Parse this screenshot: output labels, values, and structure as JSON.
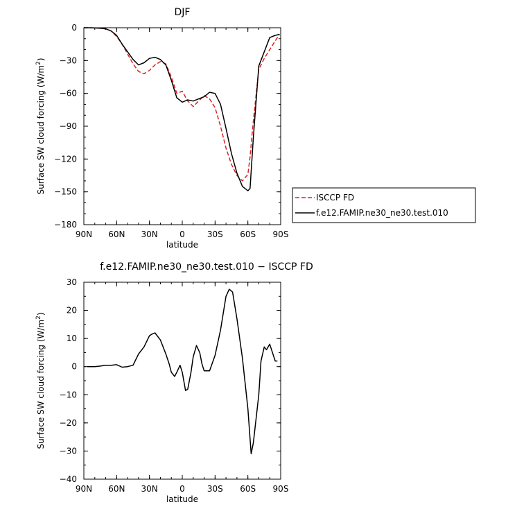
{
  "chart_data": [
    {
      "type": "line",
      "title": "DJF",
      "xlabel": "latitude",
      "ylabel": "Surface SW cloud forcing (W/m²)",
      "x_tick_labels": [
        "90N",
        "60N",
        "30N",
        "0",
        "30S",
        "60S",
        "90S"
      ],
      "x_ticks": [
        90,
        60,
        30,
        0,
        -30,
        -60,
        -90
      ],
      "xlim": [
        90,
        -90
      ],
      "y_ticks": [
        0,
        -30,
        -60,
        -90,
        -120,
        -150,
        -180
      ],
      "ylim": [
        -180,
        0
      ],
      "grid": false,
      "legend": "outside-right",
      "x": [
        90,
        85,
        80,
        75,
        70,
        65,
        60,
        55,
        50,
        45,
        40,
        35,
        30,
        25,
        20,
        15,
        10,
        5,
        0,
        -5,
        -10,
        -15,
        -20,
        -25,
        -30,
        -35,
        -40,
        -45,
        -50,
        -55,
        -60,
        -62,
        -65,
        -70,
        -75,
        -80,
        -85,
        -89
      ],
      "series": [
        {
          "name": "ISCCP FD",
          "color": "#dd2222",
          "dash": true,
          "values": [
            0,
            0,
            -0.2,
            -0.5,
            -1,
            -3,
            -8,
            -15,
            -24,
            -33,
            -40,
            -42,
            -39,
            -34,
            -31,
            -33,
            -45,
            -60,
            -58,
            -67,
            -72,
            -67,
            -62,
            -65,
            -73,
            -90,
            -110,
            -125,
            -135,
            -140,
            -134,
            -118,
            -85,
            -38,
            -28,
            -20,
            -12,
            -6
          ]
        },
        {
          "name": "f.e12.FAMIP.ne30_ne30.test.010",
          "color": "#000000",
          "dash": false,
          "values": [
            0,
            0,
            -0.2,
            -0.5,
            -1,
            -3,
            -7,
            -15,
            -22,
            -29,
            -34,
            -32,
            -28,
            -27,
            -29,
            -34,
            -48,
            -64,
            -68,
            -66,
            -67,
            -65,
            -63,
            -59,
            -60,
            -70,
            -92,
            -115,
            -133,
            -145,
            -149,
            -147,
            -100,
            -35,
            -22,
            -9,
            -7,
            -6
          ]
        }
      ]
    },
    {
      "type": "line",
      "title": "f.e12.FAMIP.ne30_ne30.test.010 − ISCCP FD",
      "xlabel": "latitude",
      "ylabel": "Surface SW cloud forcing (W/m²)",
      "x_tick_labels": [
        "90N",
        "60N",
        "30N",
        "0",
        "30S",
        "60S",
        "90S"
      ],
      "x_ticks": [
        90,
        60,
        30,
        0,
        -30,
        -60,
        -90
      ],
      "xlim": [
        90,
        -90
      ],
      "y_ticks": [
        30,
        20,
        10,
        0,
        -10,
        -20,
        -30,
        -40
      ],
      "ylim": [
        -40,
        30
      ],
      "grid": false,
      "x": [
        87,
        80,
        75,
        70,
        65,
        60,
        55,
        50,
        45,
        40,
        35,
        30,
        28,
        25,
        20,
        15,
        12,
        10,
        7,
        5,
        2,
        0,
        -3,
        -5,
        -8,
        -10,
        -13,
        -16,
        -18,
        -20,
        -25,
        -30,
        -35,
        -40,
        -43,
        -46,
        -50,
        -55,
        -60,
        -63,
        -65,
        -70,
        -72,
        -75,
        -77,
        -80,
        -85,
        -87
      ],
      "series": [
        {
          "name": "",
          "color": "#000000",
          "dash": false,
          "values": [
            0,
            0,
            0.2,
            0.5,
            0.5,
            0.7,
            -0.2,
            0,
            0.5,
            4.5,
            7,
            11,
            11.5,
            12,
            9.5,
            4.5,
            1,
            -2,
            -3.5,
            -2,
            0.5,
            -2,
            -8.5,
            -8,
            -2,
            3.5,
            7.5,
            5,
            1,
            -1.5,
            -1.5,
            4,
            13,
            25,
            27.5,
            26.5,
            17,
            3,
            -15,
            -31,
            -27,
            -10,
            2,
            7,
            6,
            8,
            2,
            2
          ]
        }
      ]
    }
  ]
}
